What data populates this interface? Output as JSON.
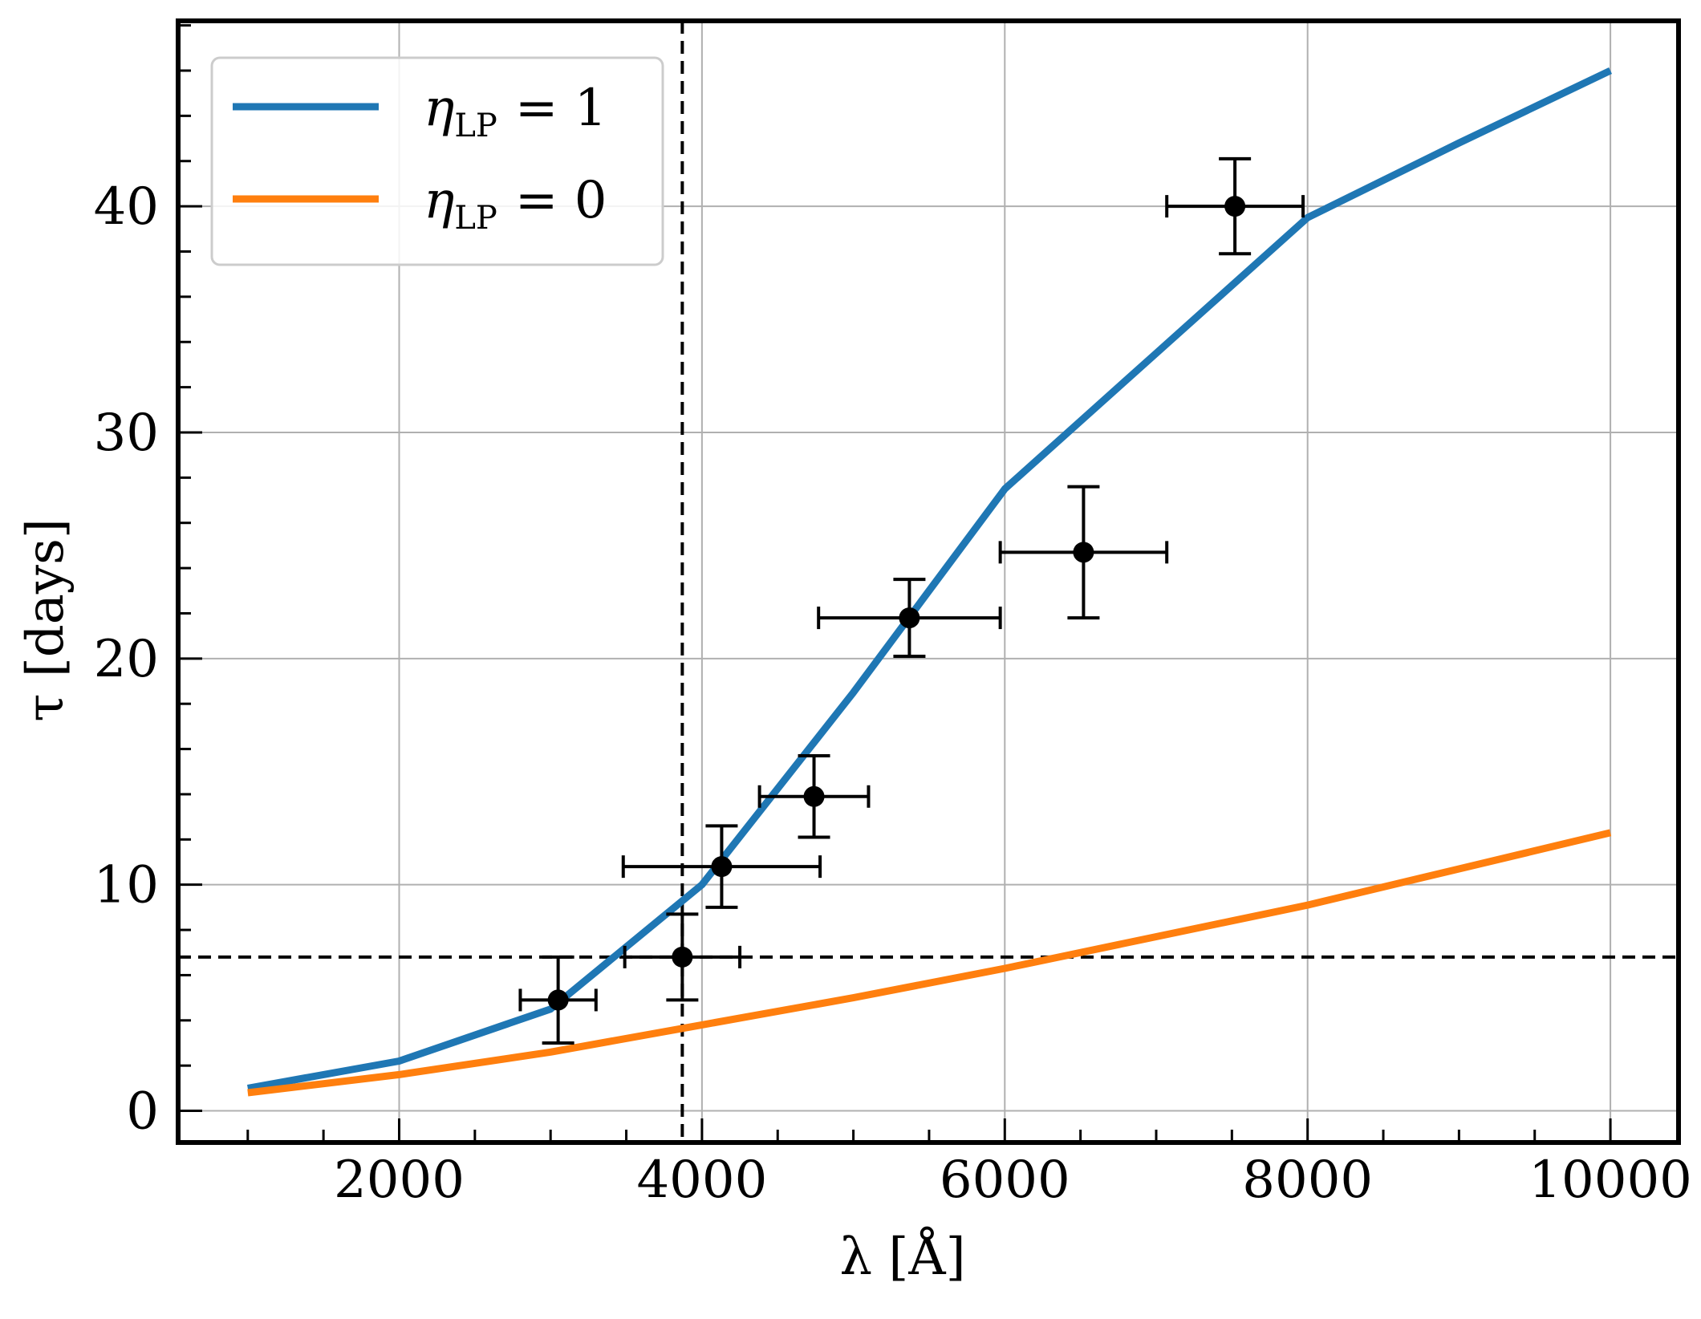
{
  "chart_data": {
    "type": "line",
    "title": "",
    "xlabel": "λ [Å]",
    "ylabel": "τ [days]",
    "xlim": [
      540,
      10450
    ],
    "ylim": [
      -1.4,
      48.2
    ],
    "xticks": [
      2000,
      4000,
      6000,
      8000,
      10000
    ],
    "xtick_labels": [
      "2000",
      "4000",
      "6000",
      "8000",
      "10000"
    ],
    "yticks": [
      0,
      10,
      20,
      30,
      40
    ],
    "ytick_labels": [
      "0",
      "10",
      "20",
      "30",
      "40"
    ],
    "grid": true,
    "legend_position": "top-left",
    "series": [
      {
        "name": "η_LP = 1",
        "legend_symbol": "η",
        "legend_subscript": "LP",
        "legend_rhs": "= 1",
        "color": "#1f77b4",
        "x": [
          1000,
          2000,
          3000,
          4000,
          5000,
          6000,
          7000,
          8000,
          9000,
          10000
        ],
        "y": [
          1.0,
          2.2,
          4.5,
          10.0,
          18.5,
          27.5,
          33.5,
          39.5,
          42.8,
          46.0
        ]
      },
      {
        "name": "η_LP = 0",
        "legend_symbol": "η",
        "legend_subscript": "LP",
        "legend_rhs": "= 0",
        "color": "#ff7f0e",
        "x": [
          1000,
          2000,
          3000,
          4000,
          5000,
          6000,
          7000,
          8000,
          9000,
          10000
        ],
        "y": [
          0.8,
          1.6,
          2.6,
          3.8,
          5.0,
          6.3,
          7.7,
          9.1,
          10.7,
          12.3
        ]
      }
    ],
    "error_points": [
      {
        "x": 3050,
        "y": 4.9,
        "xerr": 250,
        "yerr": 1.9
      },
      {
        "x": 3870,
        "y": 6.8,
        "xerr": 380,
        "yerr": 1.9
      },
      {
        "x": 4130,
        "y": 10.8,
        "xerr": 650,
        "yerr": 1.8
      },
      {
        "x": 4740,
        "y": 13.9,
        "xerr": 360,
        "yerr": 1.8
      },
      {
        "x": 5370,
        "y": 21.8,
        "xerr": 600,
        "yerr": 1.7
      },
      {
        "x": 6520,
        "y": 24.7,
        "xerr": 550,
        "yerr": 2.9
      },
      {
        "x": 7520,
        "y": 40.0,
        "xerr": 450,
        "yerr": 2.1
      }
    ],
    "reference_lines": [
      {
        "orientation": "vertical",
        "x": 3870,
        "style": "dashed",
        "color": "#000000"
      },
      {
        "orientation": "horizontal",
        "y": 6.8,
        "style": "dashed",
        "color": "#000000"
      }
    ]
  }
}
